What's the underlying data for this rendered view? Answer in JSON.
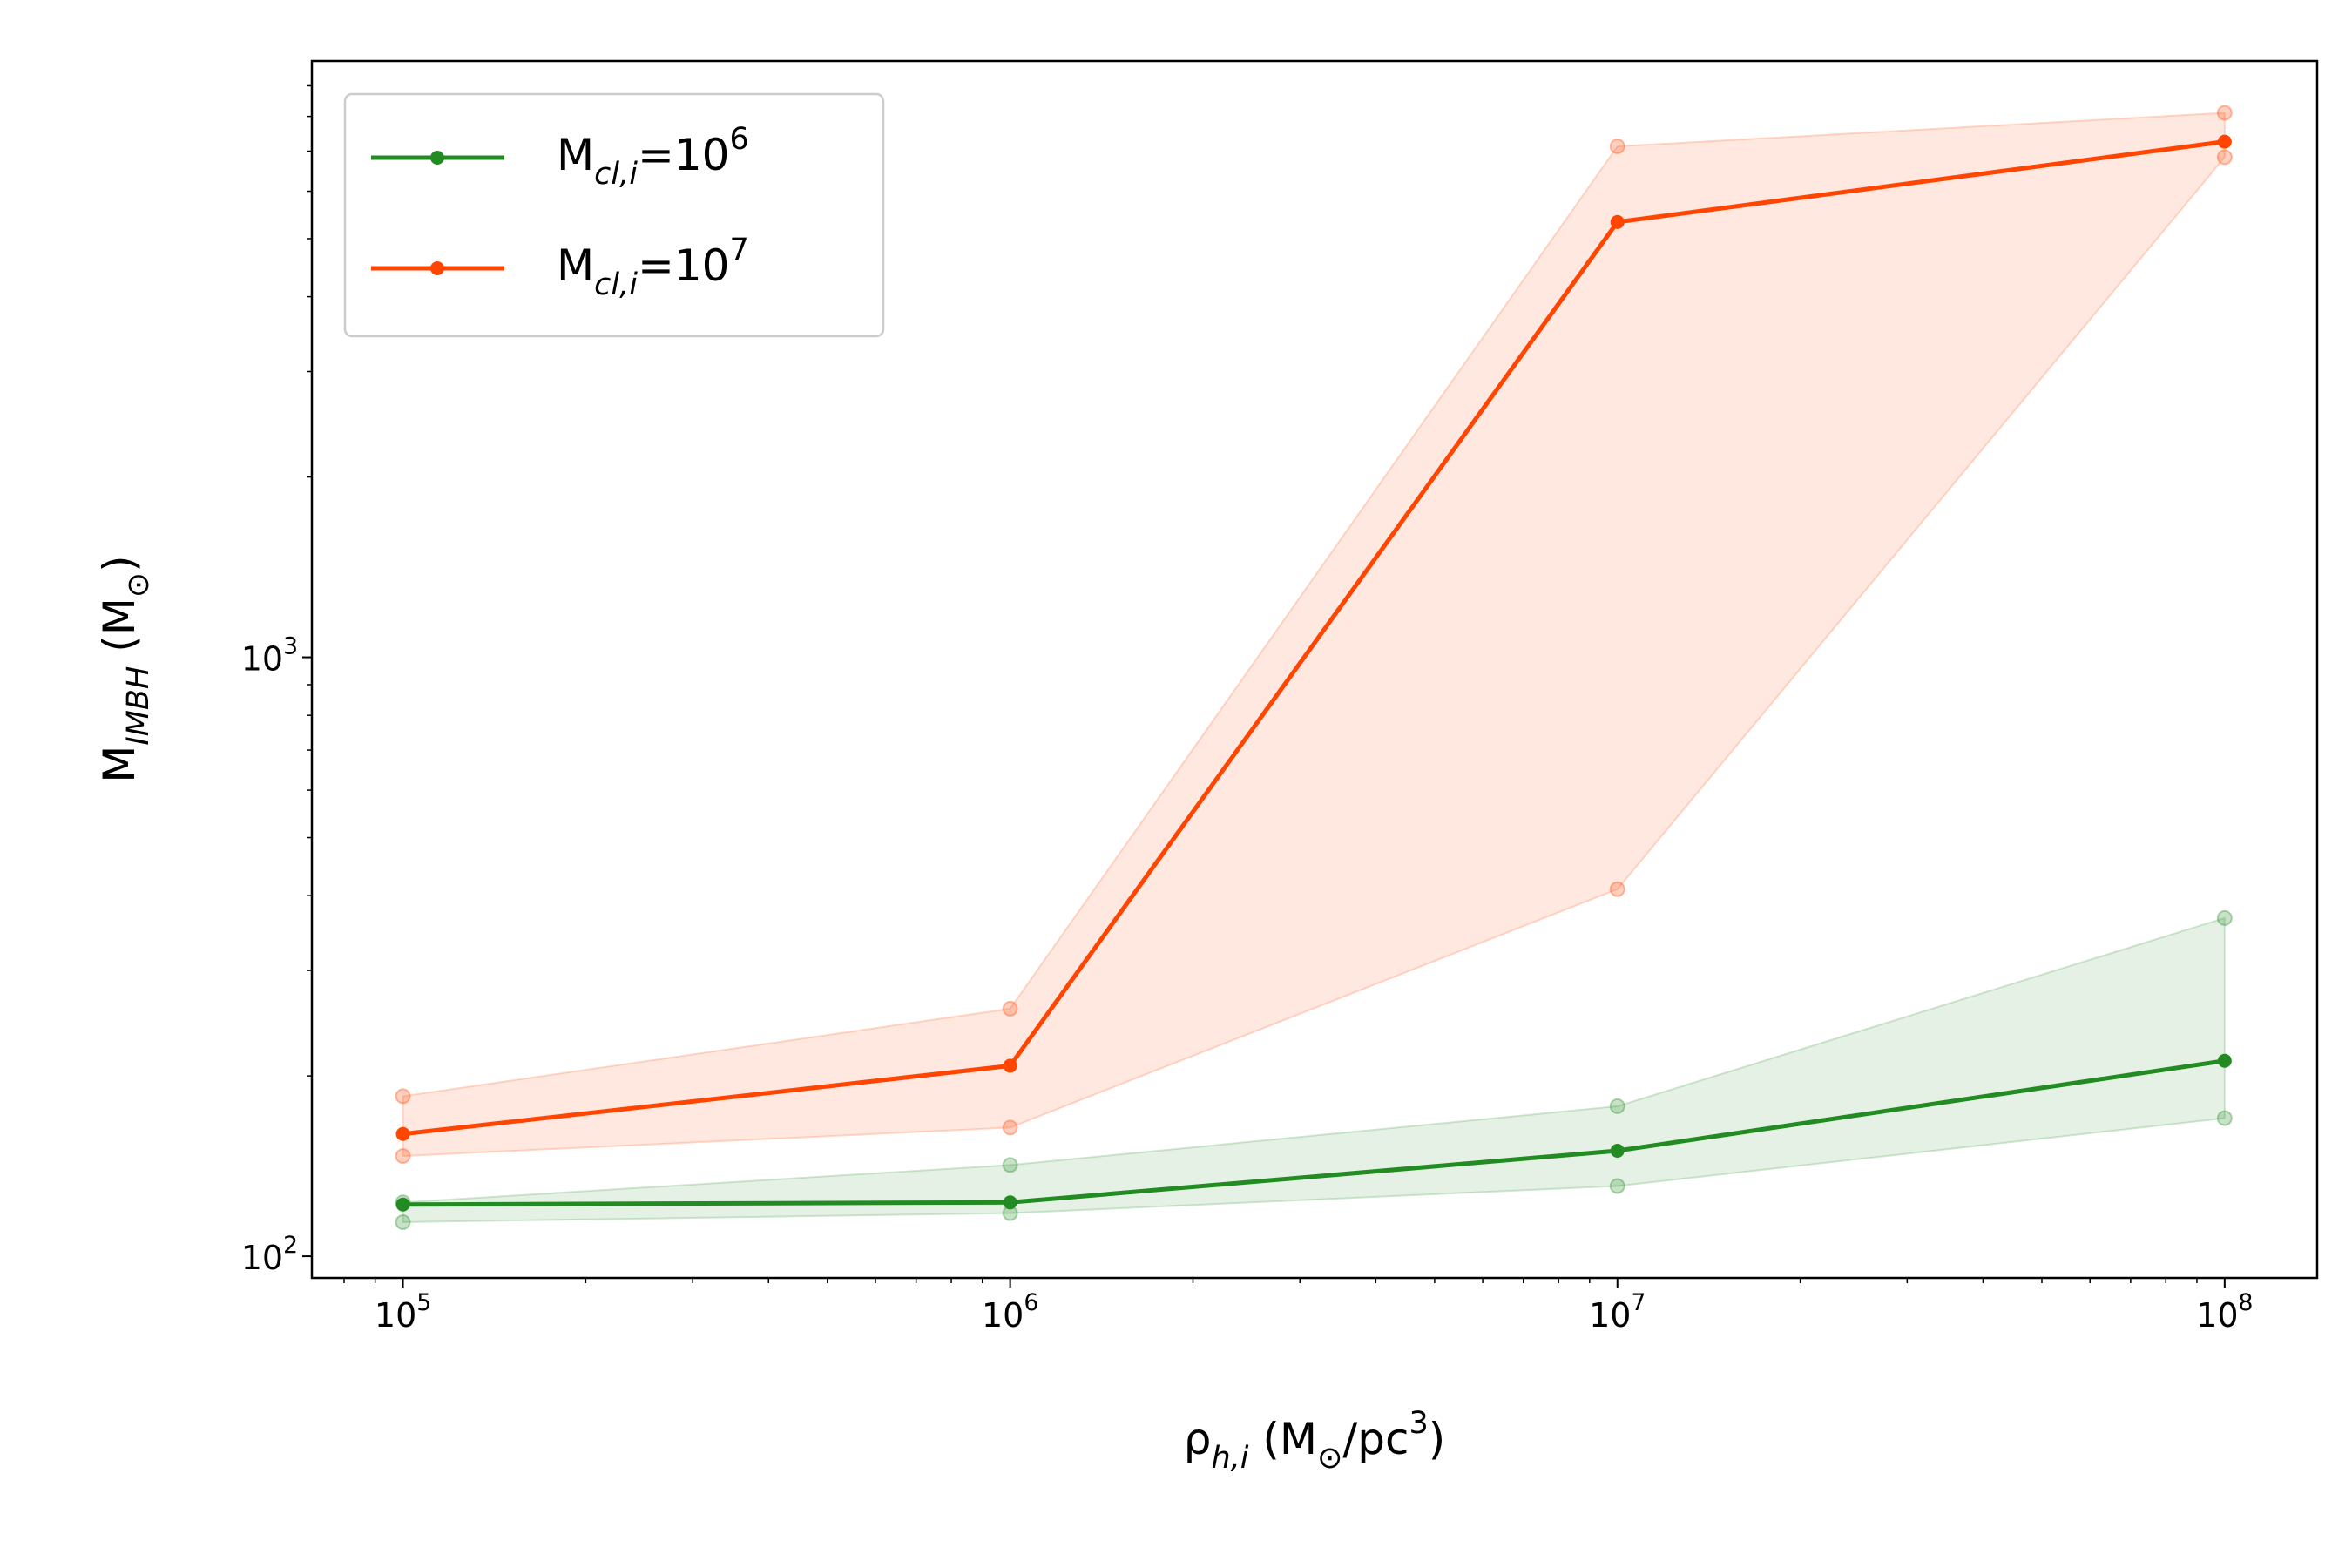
{
  "chart_data": {
    "type": "line",
    "x": [
      100000,
      1000000,
      10000000,
      100000000
    ],
    "xlabel": "ρ_{h,i} (M_{⊙}/pc^{3})",
    "ylabel": "M_{IMBH} (M_{⊙})",
    "log_x": true,
    "log_y": true,
    "xlim": [
      70800,
      142000000
    ],
    "ylim": [
      92,
      9900
    ],
    "xticks": [
      {
        "value": 100000,
        "label": "10^{5}"
      },
      {
        "value": 1000000,
        "label": "10^{6}"
      },
      {
        "value": 10000000,
        "label": "10^{7}"
      },
      {
        "value": 100000000,
        "label": "10^{8}"
      }
    ],
    "yticks": [
      {
        "value": 100,
        "label": "10^{2}"
      },
      {
        "value": 1000,
        "label": "10^{3}"
      }
    ],
    "minor_ticks": true,
    "legend": "upper left",
    "series": [
      {
        "name": "M_{cl,i}=10^{6}",
        "color": "#228b22",
        "values": [
          122,
          123,
          150,
          212
        ],
        "lower": [
          114,
          118,
          131,
          170
        ],
        "upper": [
          123,
          142,
          178,
          367
        ]
      },
      {
        "name": "M_{cl,i}=10^{7}",
        "color": "#ff4500",
        "values": [
          160,
          208,
          5330,
          7260
        ],
        "lower": [
          147,
          164,
          410,
          6840
        ],
        "upper": [
          185,
          259,
          7130,
          8110
        ]
      }
    ]
  }
}
